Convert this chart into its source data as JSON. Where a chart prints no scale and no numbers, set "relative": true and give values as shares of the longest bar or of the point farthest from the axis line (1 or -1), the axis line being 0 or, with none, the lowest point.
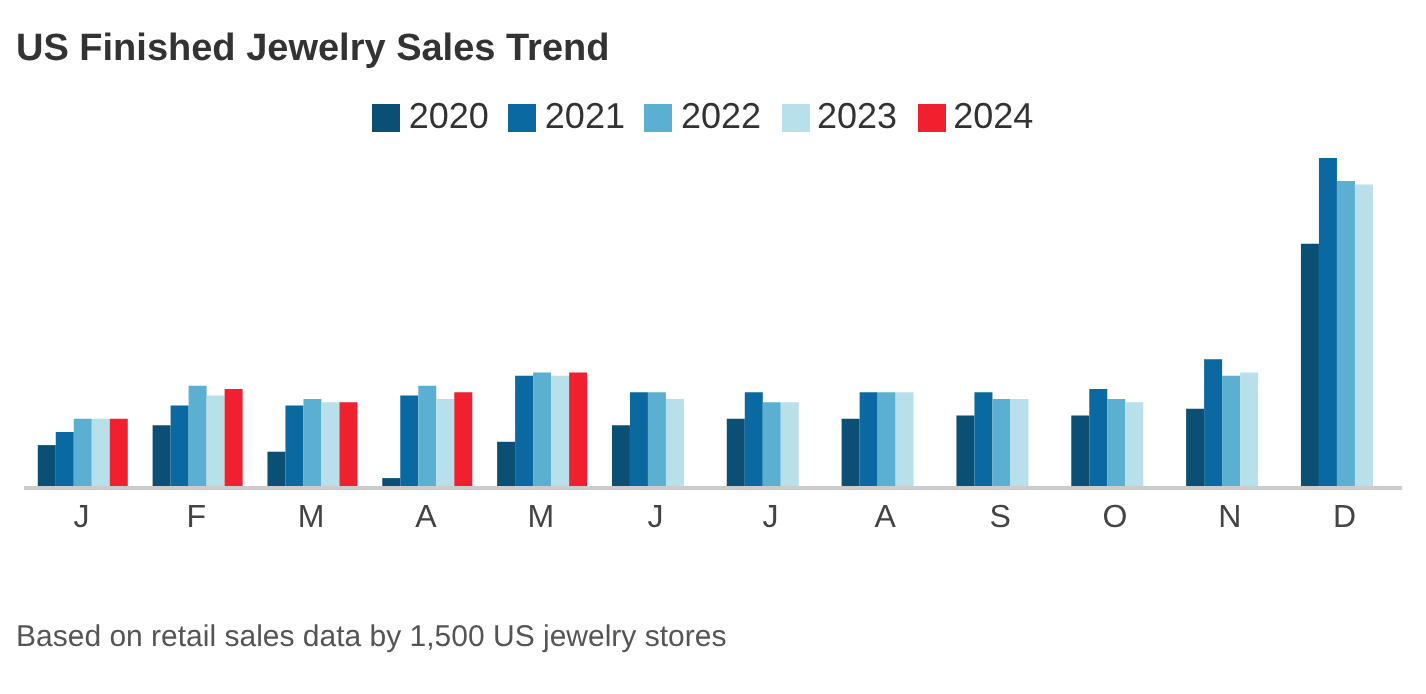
{
  "chart_data": {
    "type": "bar",
    "title": "US Finished Jewelry Sales Trend",
    "relative": true,
    "categories": [
      "J",
      "F",
      "M",
      "A",
      "M",
      "J",
      "J",
      "A",
      "S",
      "O",
      "N",
      "D"
    ],
    "series": [
      {
        "name": "2020",
        "color": "#0b4f75",
        "values": [
          0.13,
          0.19,
          0.11,
          0.03,
          0.14,
          0.19,
          0.21,
          0.21,
          0.22,
          0.22,
          0.24,
          0.74
        ]
      },
      {
        "name": "2021",
        "color": "#0969a0",
        "values": [
          0.17,
          0.25,
          0.25,
          0.28,
          0.34,
          0.29,
          0.29,
          0.29,
          0.29,
          0.3,
          0.39,
          1
        ]
      },
      {
        "name": "2022",
        "color": "#5bb0d2",
        "values": [
          0.21,
          0.31,
          0.27,
          0.31,
          0.35,
          0.29,
          0.26,
          0.29,
          0.27,
          0.27,
          0.34,
          0.93
        ]
      },
      {
        "name": "2023",
        "color": "#b8e0ea",
        "values": [
          0.21,
          0.28,
          0.26,
          0.27,
          0.34,
          0.27,
          0.26,
          0.29,
          0.27,
          0.26,
          0.35,
          0.92
        ]
      },
      {
        "name": "2024",
        "color": "#f0202f",
        "values": [
          0.21,
          0.3,
          0.26,
          0.29,
          0.35,
          null,
          null,
          null,
          null,
          null,
          null,
          null
        ]
      }
    ],
    "legend": "top",
    "grid": false,
    "annotations": [
      "Based on retail sales data by 1,500 US jewelry stores"
    ]
  }
}
